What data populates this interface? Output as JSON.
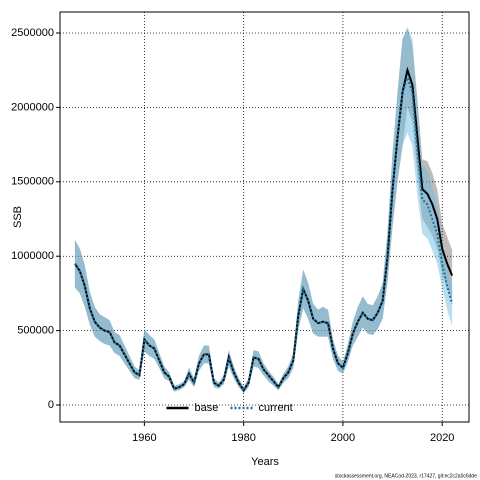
{
  "chart_data": {
    "type": "line",
    "xlabel": "Years",
    "ylabel": "SSB",
    "note": "stockassessment.org, NEACod-2023, r17427, git:ec2c2a0c6dde",
    "x": [
      1946,
      1947,
      1948,
      1949,
      1950,
      1951,
      1952,
      1953,
      1954,
      1955,
      1956,
      1957,
      1958,
      1959,
      1960,
      1961,
      1962,
      1963,
      1964,
      1965,
      1966,
      1967,
      1968,
      1969,
      1970,
      1971,
      1972,
      1973,
      1974,
      1975,
      1976,
      1977,
      1978,
      1979,
      1980,
      1981,
      1982,
      1983,
      1984,
      1985,
      1986,
      1987,
      1988,
      1989,
      1990,
      1991,
      1992,
      1993,
      1994,
      1995,
      1996,
      1997,
      1998,
      1999,
      2000,
      2001,
      2002,
      2003,
      2004,
      2005,
      2006,
      2007,
      2008,
      2009,
      2010,
      2011,
      2012,
      2013,
      2014,
      2015,
      2016,
      2017,
      2018,
      2019,
      2020,
      2021,
      2022
    ],
    "series": [
      {
        "name": "base",
        "color": "#000000",
        "band_color": "rgba(60,60,60,0.35)",
        "linestyle": "solid",
        "values": [
          950000,
          900000,
          800000,
          650000,
          560000,
          520000,
          500000,
          490000,
          420000,
          400000,
          340000,
          280000,
          220000,
          200000,
          440000,
          400000,
          380000,
          300000,
          220000,
          190000,
          110000,
          120000,
          140000,
          210000,
          150000,
          280000,
          340000,
          340000,
          150000,
          130000,
          170000,
          320000,
          220000,
          150000,
          100000,
          150000,
          320000,
          310000,
          240000,
          200000,
          160000,
          120000,
          180000,
          220000,
          300000,
          600000,
          780000,
          700000,
          580000,
          550000,
          560000,
          550000,
          380000,
          280000,
          250000,
          350000,
          480000,
          560000,
          620000,
          580000,
          570000,
          620000,
          700000,
          1000000,
          1450000,
          1800000,
          2100000,
          2250000,
          2150000,
          1800000,
          1450000,
          1420000,
          1350000,
          1250000,
          1050000,
          950000,
          870000
        ],
        "lower": [
          790000,
          750000,
          660000,
          540000,
          460000,
          430000,
          410000,
          400000,
          350000,
          330000,
          280000,
          230000,
          180000,
          170000,
          360000,
          330000,
          310000,
          250000,
          180000,
          160000,
          90000,
          100000,
          120000,
          170000,
          120000,
          230000,
          280000,
          280000,
          120000,
          110000,
          140000,
          260000,
          180000,
          120000,
          80000,
          120000,
          260000,
          250000,
          200000,
          160000,
          130000,
          100000,
          150000,
          180000,
          250000,
          500000,
          650000,
          580000,
          480000,
          460000,
          460000,
          460000,
          310000,
          230000,
          210000,
          290000,
          400000,
          460000,
          520000,
          480000,
          470000,
          510000,
          580000,
          830000,
          1200000,
          1500000,
          1740000,
          2000000,
          1900000,
          1550000,
          1250000,
          1200000,
          1140000,
          1050000,
          880000,
          780000,
          700000
        ],
        "upper": [
          1110000,
          1050000,
          940000,
          760000,
          660000,
          610000,
          590000,
          570000,
          490000,
          470000,
          400000,
          330000,
          260000,
          230000,
          510000,
          470000,
          440000,
          350000,
          260000,
          220000,
          130000,
          140000,
          160000,
          250000,
          180000,
          330000,
          400000,
          400000,
          180000,
          150000,
          200000,
          370000,
          260000,
          180000,
          120000,
          180000,
          370000,
          360000,
          280000,
          230000,
          190000,
          140000,
          210000,
          260000,
          350000,
          700000,
          910000,
          820000,
          680000,
          640000,
          660000,
          640000,
          440000,
          330000,
          290000,
          410000,
          560000,
          660000,
          730000,
          680000,
          670000,
          730000,
          820000,
          1170000,
          1700000,
          2100000,
          2460000,
          2530000,
          2420000,
          2060000,
          1650000,
          1640000,
          1560000,
          1450000,
          1220000,
          1130000,
          1040000
        ]
      },
      {
        "name": "current",
        "color": "#1f6f9f",
        "band_color": "rgba(110,190,225,0.5)",
        "linestyle": "dotted",
        "values": [
          950000,
          900000,
          800000,
          650000,
          560000,
          520000,
          500000,
          490000,
          420000,
          400000,
          340000,
          280000,
          220000,
          200000,
          440000,
          400000,
          380000,
          300000,
          220000,
          190000,
          110000,
          120000,
          140000,
          210000,
          150000,
          280000,
          340000,
          340000,
          150000,
          130000,
          170000,
          320000,
          220000,
          150000,
          100000,
          150000,
          320000,
          310000,
          240000,
          200000,
          160000,
          120000,
          180000,
          220000,
          300000,
          600000,
          780000,
          700000,
          580000,
          550000,
          560000,
          550000,
          380000,
          280000,
          250000,
          350000,
          480000,
          560000,
          620000,
          580000,
          570000,
          620000,
          700000,
          1000000,
          1450000,
          1800000,
          2100000,
          2200000,
          2100000,
          1700000,
          1380000,
          1350000,
          1250000,
          1150000,
          950000,
          800000,
          680000
        ],
        "lower": [
          790000,
          750000,
          660000,
          540000,
          460000,
          430000,
          410000,
          400000,
          350000,
          330000,
          280000,
          230000,
          180000,
          170000,
          360000,
          330000,
          310000,
          250000,
          180000,
          160000,
          90000,
          100000,
          120000,
          170000,
          120000,
          230000,
          280000,
          280000,
          120000,
          110000,
          140000,
          260000,
          180000,
          120000,
          80000,
          120000,
          260000,
          250000,
          200000,
          160000,
          130000,
          100000,
          150000,
          180000,
          250000,
          500000,
          650000,
          580000,
          480000,
          460000,
          460000,
          460000,
          310000,
          230000,
          210000,
          290000,
          400000,
          460000,
          520000,
          480000,
          470000,
          510000,
          580000,
          830000,
          1200000,
          1500000,
          1740000,
          1830000,
          1740000,
          1410000,
          1150000,
          1120000,
          1040000,
          950000,
          790000,
          640000,
          530000
        ],
        "upper": [
          1110000,
          1050000,
          940000,
          760000,
          660000,
          610000,
          590000,
          570000,
          490000,
          470000,
          400000,
          330000,
          260000,
          230000,
          510000,
          470000,
          440000,
          350000,
          260000,
          220000,
          130000,
          140000,
          160000,
          250000,
          180000,
          330000,
          400000,
          400000,
          180000,
          150000,
          200000,
          370000,
          260000,
          180000,
          120000,
          180000,
          370000,
          360000,
          280000,
          230000,
          190000,
          140000,
          210000,
          260000,
          350000,
          700000,
          910000,
          820000,
          680000,
          640000,
          660000,
          640000,
          440000,
          330000,
          290000,
          410000,
          560000,
          660000,
          730000,
          680000,
          670000,
          730000,
          820000,
          1170000,
          1700000,
          2100000,
          2460000,
          2540000,
          2460000,
          1990000,
          1610000,
          1580000,
          1460000,
          1350000,
          1110000,
          940000,
          800000
        ]
      }
    ],
    "xlim": [
      1943,
      2025.4
    ],
    "xticks": [
      1960,
      1980,
      2000,
      2020
    ],
    "ylim": [
      -114000,
      2641000
    ],
    "yticks": [
      0,
      500000,
      1000000,
      1500000,
      2000000,
      2500000
    ],
    "grid": true,
    "legend": "lower center"
  }
}
